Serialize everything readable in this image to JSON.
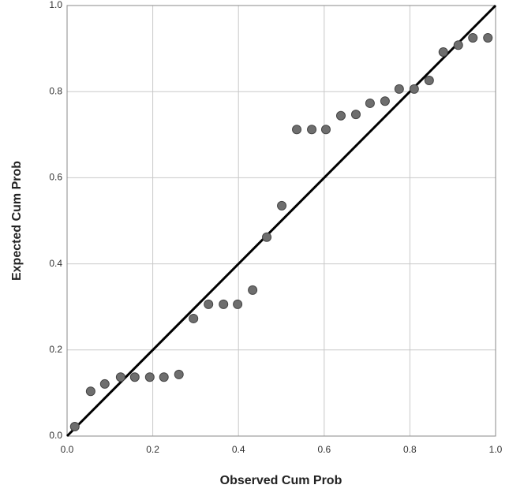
{
  "chart_data": {
    "type": "scatter",
    "x_label": "Observed Cum Prob",
    "y_label": "Expected Cum Prob",
    "x": [
      0.018,
      0.055,
      0.088,
      0.125,
      0.158,
      0.193,
      0.226,
      0.261,
      0.295,
      0.33,
      0.365,
      0.398,
      0.433,
      0.466,
      0.501,
      0.536,
      0.571,
      0.604,
      0.639,
      0.674,
      0.707,
      0.742,
      0.775,
      0.81,
      0.845,
      0.878,
      0.913,
      0.947,
      0.982
    ],
    "values": [
      0.022,
      0.104,
      0.121,
      0.137,
      0.137,
      0.137,
      0.137,
      0.143,
      0.273,
      0.306,
      0.306,
      0.306,
      0.339,
      0.462,
      0.535,
      0.712,
      0.712,
      0.712,
      0.744,
      0.747,
      0.773,
      0.778,
      0.806,
      0.806,
      0.826,
      0.892,
      0.908,
      0.925,
      0.925
    ],
    "color": "#6e6e6e",
    "xlim": [
      0,
      1
    ],
    "ylim": [
      0,
      1
    ],
    "xticks": [
      {
        "value": 0,
        "label": "0.0"
      },
      0.2,
      0.4,
      0.6,
      0.8,
      {
        "value": 1,
        "label": "1.0"
      }
    ],
    "yticks": [
      {
        "value": 0,
        "label": "0.0"
      },
      0.2,
      0.4,
      0.6,
      0.8,
      {
        "value": 1,
        "label": "1.0"
      }
    ],
    "grid": true
  }
}
